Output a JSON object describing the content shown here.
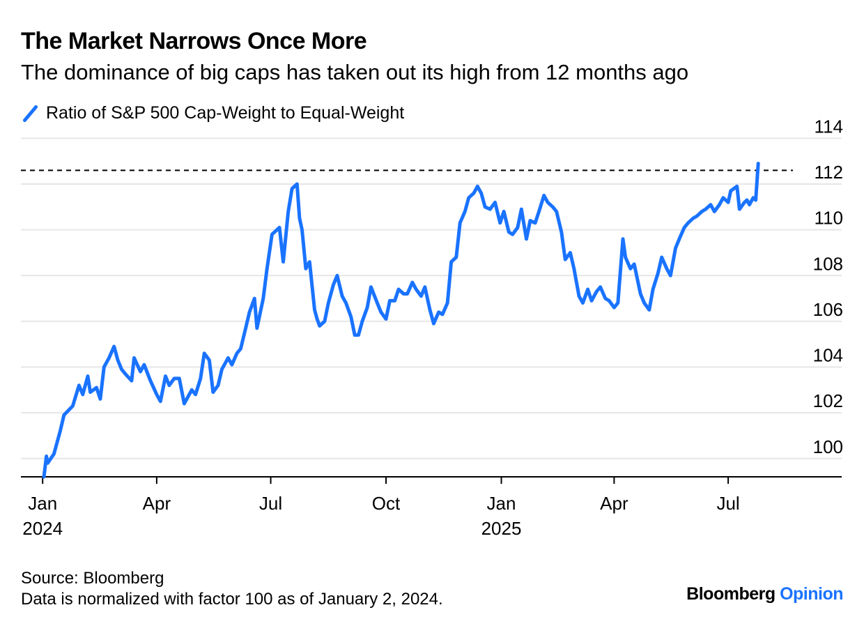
{
  "header": {
    "title": "The Market Narrows Once More",
    "subtitle": "The dominance of big caps has taken out its high from 12 months ago"
  },
  "legend": {
    "label": "Ratio of S&P 500 Cap-Weight to Equal-Weight",
    "color": "#1a73ff"
  },
  "footer": {
    "source": "Source: Bloomberg",
    "note": "Data is normalized with factor 100 as of January 2, 2024."
  },
  "brand": {
    "name": "Bloomberg",
    "suffix": "Opinion"
  },
  "chart_data": {
    "type": "line",
    "title": "The Market Narrows Once More",
    "subtitle": "The dominance of big caps has taken out its high from 12 months ago",
    "xlabel": "",
    "ylabel": "",
    "ylim": [
      99.2,
      114.5
    ],
    "yticks": [
      100,
      102,
      104,
      106,
      108,
      110,
      112,
      114
    ],
    "xlim": [
      "2024-01-02",
      "2025-08-20"
    ],
    "xticks": [
      {
        "date": "2024-01-01",
        "label": "Jan",
        "year": "2024"
      },
      {
        "date": "2024-04-01",
        "label": "Apr",
        "year": ""
      },
      {
        "date": "2024-07-01",
        "label": "Jul",
        "year": ""
      },
      {
        "date": "2024-10-01",
        "label": "Oct",
        "year": ""
      },
      {
        "date": "2025-01-01",
        "label": "Jan",
        "year": "2025"
      },
      {
        "date": "2025-04-01",
        "label": "Apr",
        "year": ""
      },
      {
        "date": "2025-07-01",
        "label": "Jul",
        "year": ""
      }
    ],
    "grid": true,
    "reference_line": {
      "value": 112.6,
      "style": "dashed"
    },
    "series": [
      {
        "name": "Ratio of S&P 500 Cap-Weight to Equal-Weight",
        "color": "#1a73ff",
        "points": [
          [
            "2024-01-02",
            99.2
          ],
          [
            "2024-01-04",
            100.1
          ],
          [
            "2024-01-05",
            99.8
          ],
          [
            "2024-01-10",
            100.2
          ],
          [
            "2024-01-15",
            101.2
          ],
          [
            "2024-01-18",
            101.9
          ],
          [
            "2024-01-25",
            102.3
          ],
          [
            "2024-01-30",
            103.2
          ],
          [
            "2024-02-02",
            102.8
          ],
          [
            "2024-02-06",
            103.6
          ],
          [
            "2024-02-08",
            102.9
          ],
          [
            "2024-02-13",
            103.1
          ],
          [
            "2024-02-16",
            102.6
          ],
          [
            "2024-02-19",
            104.0
          ],
          [
            "2024-02-23",
            104.4
          ],
          [
            "2024-02-27",
            104.9
          ],
          [
            "2024-03-01",
            104.3
          ],
          [
            "2024-03-04",
            103.9
          ],
          [
            "2024-03-07",
            103.7
          ],
          [
            "2024-03-12",
            103.4
          ],
          [
            "2024-03-14",
            104.4
          ],
          [
            "2024-03-19",
            103.8
          ],
          [
            "2024-03-22",
            104.1
          ],
          [
            "2024-03-27",
            103.4
          ],
          [
            "2024-04-01",
            102.8
          ],
          [
            "2024-04-04",
            102.5
          ],
          [
            "2024-04-08",
            103.6
          ],
          [
            "2024-04-11",
            103.2
          ],
          [
            "2024-04-15",
            103.5
          ],
          [
            "2024-04-19",
            103.5
          ],
          [
            "2024-04-23",
            102.4
          ],
          [
            "2024-04-29",
            103.0
          ],
          [
            "2024-05-02",
            102.8
          ],
          [
            "2024-05-06",
            103.5
          ],
          [
            "2024-05-09",
            104.6
          ],
          [
            "2024-05-13",
            104.3
          ],
          [
            "2024-05-16",
            102.9
          ],
          [
            "2024-05-20",
            103.2
          ],
          [
            "2024-05-23",
            103.9
          ],
          [
            "2024-05-28",
            104.4
          ],
          [
            "2024-05-31",
            104.1
          ],
          [
            "2024-06-04",
            104.6
          ],
          [
            "2024-06-07",
            104.8
          ],
          [
            "2024-06-11",
            105.7
          ],
          [
            "2024-06-14",
            106.4
          ],
          [
            "2024-06-18",
            107.0
          ],
          [
            "2024-06-20",
            105.7
          ],
          [
            "2024-06-25",
            107.0
          ],
          [
            "2024-06-28",
            108.3
          ],
          [
            "2024-07-02",
            109.8
          ],
          [
            "2024-07-08",
            110.1
          ],
          [
            "2024-07-11",
            108.6
          ],
          [
            "2024-07-15",
            110.8
          ],
          [
            "2024-07-18",
            111.8
          ],
          [
            "2024-07-22",
            112.0
          ],
          [
            "2024-07-24",
            110.5
          ],
          [
            "2024-07-26",
            110.0
          ],
          [
            "2024-07-29",
            108.3
          ],
          [
            "2024-08-01",
            108.6
          ],
          [
            "2024-08-05",
            106.5
          ],
          [
            "2024-08-07",
            106.1
          ],
          [
            "2024-08-09",
            105.8
          ],
          [
            "2024-08-13",
            106.0
          ],
          [
            "2024-08-16",
            106.8
          ],
          [
            "2024-08-20",
            107.6
          ],
          [
            "2024-08-23",
            108.0
          ],
          [
            "2024-08-27",
            107.1
          ],
          [
            "2024-08-30",
            106.8
          ],
          [
            "2024-09-03",
            106.2
          ],
          [
            "2024-09-06",
            105.4
          ],
          [
            "2024-09-09",
            105.4
          ],
          [
            "2024-09-12",
            106.0
          ],
          [
            "2024-09-16",
            106.6
          ],
          [
            "2024-09-19",
            107.5
          ],
          [
            "2024-09-24",
            106.8
          ],
          [
            "2024-09-27",
            106.4
          ],
          [
            "2024-10-01",
            106.1
          ],
          [
            "2024-10-04",
            106.9
          ],
          [
            "2024-10-08",
            106.9
          ],
          [
            "2024-10-11",
            107.4
          ],
          [
            "2024-10-15",
            107.2
          ],
          [
            "2024-10-18",
            107.2
          ],
          [
            "2024-10-22",
            107.7
          ],
          [
            "2024-10-25",
            107.4
          ],
          [
            "2024-10-29",
            107.1
          ],
          [
            "2024-11-01",
            107.5
          ],
          [
            "2024-11-05",
            106.5
          ],
          [
            "2024-11-08",
            105.9
          ],
          [
            "2024-11-12",
            106.4
          ],
          [
            "2024-11-15",
            106.3
          ],
          [
            "2024-11-19",
            106.8
          ],
          [
            "2024-11-22",
            108.6
          ],
          [
            "2024-11-26",
            108.8
          ],
          [
            "2024-11-29",
            110.3
          ],
          [
            "2024-12-03",
            110.8
          ],
          [
            "2024-12-06",
            111.4
          ],
          [
            "2024-12-10",
            111.6
          ],
          [
            "2024-12-13",
            111.9
          ],
          [
            "2024-12-16",
            111.6
          ],
          [
            "2024-12-19",
            111.0
          ],
          [
            "2024-12-23",
            110.9
          ],
          [
            "2024-12-27",
            111.2
          ],
          [
            "2024-12-31",
            110.3
          ],
          [
            "2025-01-03",
            110.8
          ],
          [
            "2025-01-07",
            109.9
          ],
          [
            "2025-01-10",
            109.8
          ],
          [
            "2025-01-14",
            110.1
          ],
          [
            "2025-01-17",
            110.9
          ],
          [
            "2025-01-21",
            109.6
          ],
          [
            "2025-01-24",
            110.4
          ],
          [
            "2025-01-28",
            110.3
          ],
          [
            "2025-01-31",
            110.8
          ],
          [
            "2025-02-04",
            111.5
          ],
          [
            "2025-02-07",
            111.2
          ],
          [
            "2025-02-11",
            111.0
          ],
          [
            "2025-02-14",
            110.8
          ],
          [
            "2025-02-18",
            109.9
          ],
          [
            "2025-02-21",
            108.7
          ],
          [
            "2025-02-25",
            109.0
          ],
          [
            "2025-02-28",
            108.3
          ],
          [
            "2025-03-04",
            107.1
          ],
          [
            "2025-03-07",
            106.8
          ],
          [
            "2025-03-11",
            107.4
          ],
          [
            "2025-03-14",
            106.9
          ],
          [
            "2025-03-18",
            107.3
          ],
          [
            "2025-03-21",
            107.5
          ],
          [
            "2025-03-25",
            107.0
          ],
          [
            "2025-03-28",
            106.9
          ],
          [
            "2025-04-01",
            106.6
          ],
          [
            "2025-04-04",
            106.8
          ],
          [
            "2025-04-08",
            109.6
          ],
          [
            "2025-04-10",
            108.8
          ],
          [
            "2025-04-14",
            108.3
          ],
          [
            "2025-04-17",
            108.5
          ],
          [
            "2025-04-22",
            107.2
          ],
          [
            "2025-04-25",
            106.8
          ],
          [
            "2025-04-29",
            106.5
          ],
          [
            "2025-05-02",
            107.4
          ],
          [
            "2025-05-06",
            108.1
          ],
          [
            "2025-05-09",
            108.8
          ],
          [
            "2025-05-13",
            108.3
          ],
          [
            "2025-05-16",
            108.0
          ],
          [
            "2025-05-20",
            109.2
          ],
          [
            "2025-05-23",
            109.6
          ],
          [
            "2025-05-27",
            110.1
          ],
          [
            "2025-05-30",
            110.3
          ],
          [
            "2025-06-03",
            110.5
          ],
          [
            "2025-06-06",
            110.6
          ],
          [
            "2025-06-10",
            110.8
          ],
          [
            "2025-06-13",
            110.9
          ],
          [
            "2025-06-17",
            111.1
          ],
          [
            "2025-06-20",
            110.8
          ],
          [
            "2025-06-24",
            111.1
          ],
          [
            "2025-06-27",
            111.4
          ],
          [
            "2025-07-01",
            111.2
          ],
          [
            "2025-07-03",
            111.7
          ],
          [
            "2025-07-08",
            111.9
          ],
          [
            "2025-07-10",
            110.9
          ],
          [
            "2025-07-14",
            111.2
          ],
          [
            "2025-07-16",
            111.3
          ],
          [
            "2025-07-18",
            111.1
          ],
          [
            "2025-07-21",
            111.4
          ],
          [
            "2025-07-23",
            111.3
          ],
          [
            "2025-07-25",
            112.9
          ]
        ]
      }
    ]
  }
}
